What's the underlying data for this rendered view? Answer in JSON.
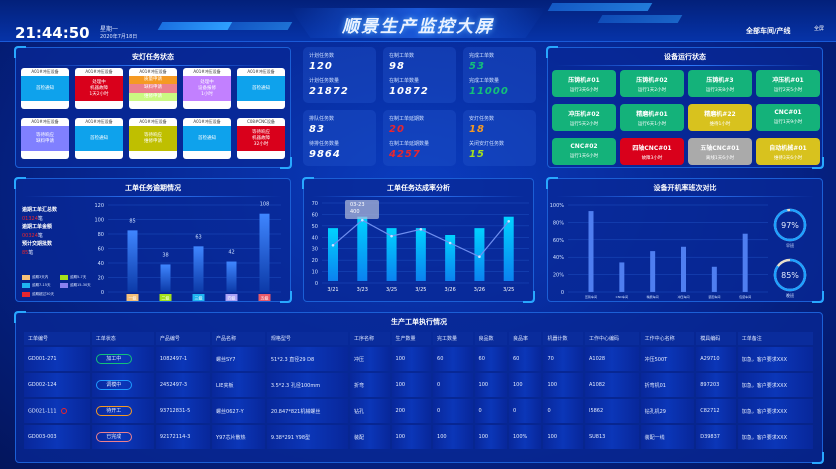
{
  "header": {
    "time": "21:44:50",
    "weekday": "星期一",
    "date": "2020年7月18日",
    "title": "顺景生产监控大屏",
    "scope": "全部车间/产线",
    "fullscreen": "全屏"
  },
  "andon": {
    "title": "安灯任务状态",
    "cards": [
      {
        "device": "A01#冲压设备",
        "segments": [
          {
            "text": "首检通知",
            "color": "#0ea2ec"
          }
        ]
      },
      {
        "device": "A01#冲压设备",
        "segments": [
          {
            "text": "处理中\n机器故障\n1天2小时",
            "color": "#d9001b"
          }
        ]
      },
      {
        "device": "A01#冲压设备",
        "segments": [
          {
            "text": "质量申请",
            "color": "#f59a23"
          },
          {
            "text": "缺料申请",
            "color": "#ec808d"
          },
          {
            "text": "维修申请",
            "color": "#caf982"
          }
        ]
      },
      {
        "device": "A01#冲压设备",
        "segments": [
          {
            "text": "处理中\n设备报修\n1小时",
            "color": "#c280ff"
          }
        ]
      },
      {
        "device": "A01#冲压设备",
        "segments": [
          {
            "text": "首检通知",
            "color": "#0ea2ec"
          }
        ]
      },
      {
        "device": "A01#冲压设备",
        "segments": [
          {
            "text": "等待响应\n缺料申请",
            "color": "#8080ff"
          }
        ]
      },
      {
        "device": "A01#冲压设备",
        "segments": [
          {
            "text": "首检通知",
            "color": "#0ea2ec"
          }
        ]
      },
      {
        "device": "A01#冲压设备",
        "segments": [
          {
            "text": "等待响应\n维修申请",
            "color": "#bfbf00"
          }
        ]
      },
      {
        "device": "A01#冲压设备",
        "segments": [
          {
            "text": "首检通知",
            "color": "#0ea2ec"
          }
        ]
      },
      {
        "device": "C08#CNC设备",
        "segments": [
          {
            "text": "等待响应\n机器故障\n32小时",
            "color": "#d9001b"
          }
        ]
      }
    ]
  },
  "kpis": [
    {
      "label": "计划任务数",
      "value": "120",
      "color": "#ffffff",
      "label2": "计划任务数量",
      "value2": "21872",
      "color2": "#ffffff"
    },
    {
      "label": "在制工单数",
      "value": "98",
      "color": "#ffffff",
      "label2": "在制工单数量",
      "value2": "10872",
      "color2": "#ffffff"
    },
    {
      "label": "完成工单数",
      "value": "53",
      "color": "#13c07a",
      "label2": "完成工单数量",
      "value2": "11000",
      "color2": "#13c07a"
    },
    {
      "label": "排队任务数",
      "value": "83",
      "color": "#ffffff",
      "label2": "待排任务数量",
      "value2": "9864",
      "color2": "#ffffff"
    },
    {
      "label": "在制工单延期数",
      "value": "20",
      "color": "#e8262f",
      "label2": "在制工单延期数量",
      "value2": "4257",
      "color2": "#e8262f"
    },
    {
      "label": "安灯任务数",
      "value": "18",
      "color": "#f59a23",
      "label2": "关闭安灯任务数",
      "value2": "15",
      "color2": "#a4e21c"
    }
  ],
  "devices": {
    "title": "设备运行状态",
    "items": [
      {
        "name": "压铸机#01",
        "status": "运行3天6小时",
        "color": "#14b27a"
      },
      {
        "name": "压铸机#02",
        "status": "运行1天2小时",
        "color": "#14b27a"
      },
      {
        "name": "压铸机#3",
        "status": "运行3天8小时",
        "color": "#14b27a"
      },
      {
        "name": "冲压机#01",
        "status": "运行2天5小时",
        "color": "#14b27a"
      },
      {
        "name": "冲压机#02",
        "status": "运行5天2小时",
        "color": "#14b27a"
      },
      {
        "name": "精磨机#01",
        "status": "运行6天1小时",
        "color": "#14b27a"
      },
      {
        "name": "精磨机#22",
        "status": "维待1小时",
        "color": "#d8c21e"
      },
      {
        "name": "CNC#01",
        "status": "运行1天9小时",
        "color": "#14b27a"
      },
      {
        "name": "CNC#02",
        "status": "运行1天6小时",
        "color": "#14b27a"
      },
      {
        "name": "四轴CNC#01",
        "status": "故障3小时",
        "color": "#d9001b"
      },
      {
        "name": "五轴CNC#01",
        "status": "离线1天6小时",
        "color": "#aaaaaa"
      },
      {
        "name": "自动机械#01",
        "status": "维待3天6小时",
        "color": "#d8c21e"
      }
    ]
  },
  "overdue": {
    "title": "工单任务逾期情况",
    "stats": [
      {
        "label": "逾期工单汇总数",
        "value": "01324",
        "unit": "笔"
      },
      {
        "label": "逾期工单金额",
        "value": "00324",
        "unit": "笔"
      },
      {
        "label": "预计交期批数",
        "value": "85",
        "unit": "笔"
      }
    ],
    "legend": [
      {
        "text": "逾期3天内",
        "color": "#f5c07a"
      },
      {
        "text": "逾期5-7天",
        "color": "#a4e21c"
      },
      {
        "text": "逾期7-15天",
        "color": "#1fb4f0"
      },
      {
        "text": "逾期15-30天",
        "color": "#8a80f0"
      },
      {
        "text": "逾期超过30天",
        "color": "#e8262f"
      }
    ]
  },
  "completion": {
    "title": "工单任务达成率分析",
    "tooltip": {
      "date": "03-23",
      "value": "400"
    }
  },
  "uptime": {
    "title": "设备开机率班次对比",
    "gauges": [
      {
        "value": 97,
        "label": "早班"
      },
      {
        "value": 85,
        "label": "晚班"
      }
    ]
  },
  "chart_data": [
    {
      "type": "bar",
      "ylim": [
        0,
        120
      ],
      "yticks": [
        0,
        20,
        40,
        60,
        80,
        100,
        120
      ],
      "categories": [
        "一级",
        "二级",
        "三级",
        "四级",
        "五级"
      ],
      "category_colors": [
        "#f5c07a",
        "#a4e21c",
        "#1fb4f0",
        "#a9a1f7",
        "#e85a6a"
      ],
      "values": [
        85,
        38,
        63,
        42,
        108
      ]
    },
    {
      "type": "bar+line",
      "ylim": [
        0,
        70
      ],
      "yticks": [
        0,
        10,
        20,
        30,
        40,
        50,
        60,
        70
      ],
      "categories": [
        "3/21",
        "3/23",
        "3/25",
        "3/25",
        "3/26",
        "3/26",
        "3/25"
      ],
      "series": [
        {
          "type": "bar",
          "values": [
            48,
            58,
            48,
            48,
            42,
            48,
            58
          ]
        },
        {
          "type": "line",
          "values": [
            33,
            55,
            41,
            47,
            35,
            23,
            54
          ]
        }
      ]
    },
    {
      "type": "bar",
      "ylim": [
        0,
        100
      ],
      "yticks": [
        "0",
        "20%",
        "40%",
        "60%",
        "80%",
        "100%"
      ],
      "categories": [
        "压铸车间",
        "CNC车间",
        "精磨车间",
        "冲压车间",
        "装配车间",
        "包装车间"
      ],
      "values": [
        93,
        34,
        47,
        52,
        29,
        67
      ]
    }
  ],
  "table": {
    "title": "生产工单执行情况",
    "columns": [
      "工单编号",
      "工单状态",
      "产品编号",
      "产品名称",
      "规格型号",
      "工序名称",
      "生产数量",
      "完工数量",
      "良品数",
      "良品率",
      "机器计数",
      "工作中心编码",
      "工作中心名称",
      "模具编码",
      "工单备注"
    ],
    "rows": [
      {
        "cells": [
          "GD001-271",
          "加工中",
          "1082497-1",
          "螺丝SY7",
          "51*2.3 直径29 D8",
          "冲压",
          "100",
          "60",
          "60",
          "60",
          "70",
          "A1028",
          "冲压500T",
          "A29710",
          "加急，客户要求XXX"
        ],
        "status_color": "#13c07a",
        "alert": false
      },
      {
        "cells": [
          "GD002-124",
          "调模中",
          "2452497-3",
          "LIE夹板",
          "3.5*2.3 孔径100mm",
          "折弯",
          "100",
          "0",
          "100",
          "100",
          "100",
          "A1082",
          "折弯机01",
          "897203",
          "加急，客户要求XXX"
        ],
        "status_color": "#1f9bff",
        "alert": false
      },
      {
        "cells": [
          "GD021-111",
          "待开工",
          "93712831-5",
          "螺丝0627-Y",
          "20.847*821机械螺丝",
          "钻孔",
          "200",
          "0",
          "0",
          "0",
          "0",
          "I5862",
          "钻孔机29",
          "C82712",
          "加急，客户要求XXX"
        ],
        "status_color": "#f59a23",
        "alert": true
      },
      {
        "cells": [
          "GD003-003",
          "已完成",
          "92172114-3",
          "Y97芯片散热",
          "9.38*291 Y98型",
          "装配",
          "100",
          "100",
          "100",
          "100%",
          "100",
          "SU813",
          "装配一线",
          "D39837",
          "加急，客户要求XXX"
        ],
        "status_color": "#ec808d",
        "alert": false
      }
    ]
  }
}
